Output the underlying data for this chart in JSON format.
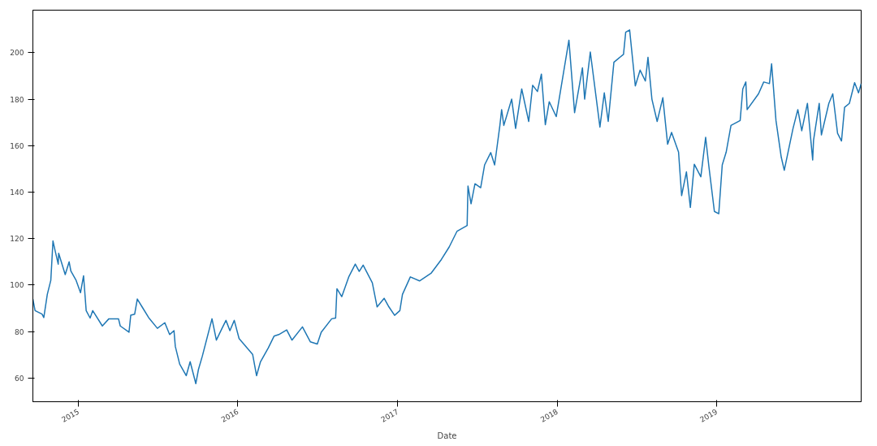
{
  "chart_data": {
    "type": "line",
    "xlabel": "Date",
    "x": [
      "2014-09-19",
      "2014-09-24",
      "2014-10-10",
      "2014-10-14",
      "2014-10-22",
      "2014-10-30",
      "2014-11-04",
      "2014-11-09",
      "2014-11-16",
      "2014-11-17",
      "2014-12-02",
      "2014-12-11",
      "2014-12-15",
      "2014-12-27",
      "2015-01-06",
      "2015-01-13",
      "2015-01-19",
      "2015-01-28",
      "2015-02-03",
      "2015-02-25",
      "2015-03-12",
      "2015-04-03",
      "2015-04-07",
      "2015-04-27",
      "2015-05-01",
      "2015-05-10",
      "2015-05-16",
      "2015-05-29",
      "2015-06-11",
      "2015-07-01",
      "2015-07-18",
      "2015-07-29",
      "2015-08-08",
      "2015-08-11",
      "2015-08-21",
      "2015-09-05",
      "2015-09-14",
      "2015-09-27",
      "2015-10-03",
      "2015-10-12",
      "2015-11-03",
      "2015-11-13",
      "2015-11-26",
      "2015-12-05",
      "2015-12-14",
      "2015-12-24",
      "2016-01-04",
      "2016-02-04",
      "2016-02-13",
      "2016-02-22",
      "2016-03-11",
      "2016-03-24",
      "2016-04-04",
      "2016-04-22",
      "2016-05-04",
      "2016-05-28",
      "2016-06-15",
      "2016-07-01",
      "2016-07-10",
      "2016-08-03",
      "2016-08-12",
      "2016-08-15",
      "2016-08-26",
      "2016-09-11",
      "2016-09-26",
      "2016-10-05",
      "2016-10-14",
      "2016-11-04",
      "2016-11-15",
      "2016-12-01",
      "2016-12-12",
      "2016-12-25",
      "2017-01-06",
      "2017-01-12",
      "2017-01-30",
      "2017-02-20",
      "2017-03-19",
      "2017-04-11",
      "2017-04-29",
      "2017-05-17",
      "2017-06-09",
      "2017-06-11",
      "2017-06-18",
      "2017-06-27",
      "2017-07-10",
      "2017-07-19",
      "2017-08-02",
      "2017-08-11",
      "2017-08-23",
      "2017-08-27",
      "2017-09-01",
      "2017-09-19",
      "2017-09-28",
      "2017-10-12",
      "2017-10-28",
      "2017-11-06",
      "2017-11-17",
      "2017-11-26",
      "2017-12-05",
      "2017-12-14",
      "2017-12-30",
      "2018-01-28",
      "2018-02-10",
      "2018-02-28",
      "2018-03-05",
      "2018-03-18",
      "2018-04-09",
      "2018-04-19",
      "2018-04-28",
      "2018-05-11",
      "2018-06-02",
      "2018-06-07",
      "2018-06-16",
      "2018-06-29",
      "2018-07-10",
      "2018-07-22",
      "2018-07-28",
      "2018-08-06",
      "2018-08-18",
      "2018-08-31",
      "2018-09-11",
      "2018-09-20",
      "2018-10-06",
      "2018-10-13",
      "2018-10-24",
      "2018-11-02",
      "2018-11-11",
      "2018-11-26",
      "2018-12-07",
      "2018-12-14",
      "2018-12-27",
      "2019-01-06",
      "2019-01-14",
      "2019-01-23",
      "2019-02-03",
      "2019-02-24",
      "2019-03-02",
      "2019-03-09",
      "2019-03-12",
      "2019-04-07",
      "2019-04-19",
      "2019-05-02",
      "2019-05-07",
      "2019-05-17",
      "2019-05-29",
      "2019-06-05",
      "2019-06-25",
      "2019-07-06",
      "2019-07-15",
      "2019-07-28",
      "2019-08-09",
      "2019-08-11",
      "2019-08-24",
      "2019-08-29",
      "2019-09-15",
      "2019-09-24",
      "2019-10-05",
      "2019-10-14",
      "2019-10-21",
      "2019-11-01",
      "2019-11-13",
      "2019-11-22",
      "2019-11-28"
    ],
    "series": [
      {
        "color": "#1f77b4",
        "values": [
          94,
          89,
          87.5,
          86,
          96,
          102,
          119,
          114.7,
          109,
          113.7,
          104.5,
          110,
          106,
          102,
          96.7,
          104,
          89,
          85.8,
          89,
          82.4,
          85.5,
          85.5,
          82.4,
          79.7,
          87,
          87.5,
          94,
          90,
          86,
          81.4,
          83.8,
          78.7,
          80.4,
          73.6,
          66,
          61,
          67,
          57.6,
          63.7,
          69.5,
          85.5,
          76.3,
          81.4,
          84.8,
          80.4,
          84.8,
          77,
          70.2,
          61,
          67,
          73,
          78,
          78.7,
          80.7,
          76.3,
          82,
          75.6,
          74.6,
          79.7,
          85.5,
          85.8,
          98.4,
          95,
          103.5,
          109,
          105.9,
          108.6,
          101,
          90.6,
          94.3,
          90.6,
          87,
          89,
          96,
          103.5,
          101.8,
          105.2,
          111,
          116.4,
          123.2,
          125.6,
          142.6,
          135,
          143.6,
          141.9,
          151.7,
          157,
          151.7,
          168.7,
          175.5,
          168.7,
          180,
          167.4,
          184.4,
          170.4,
          186,
          183.3,
          190.8,
          169,
          178.9,
          172.5,
          205.4,
          174.2,
          193.5,
          180,
          200.3,
          168,
          182.7,
          170.4,
          195.9,
          199.3,
          208.8,
          209.8,
          185.7,
          192.5,
          187.8,
          198,
          180,
          170.4,
          180.6,
          160.6,
          165.7,
          157.2,
          138.5,
          148.7,
          133.4,
          152,
          146.6,
          163.6,
          151.7,
          131.7,
          130.7,
          151.7,
          157.2,
          168.7,
          170.8,
          184.4,
          187.4,
          175.5,
          182.3,
          187.4,
          186.7,
          195.2,
          170.8,
          155.1,
          149.4,
          167.4,
          175.5,
          166.4,
          178.2,
          153.8,
          162.3,
          178.2,
          164.6,
          178.2,
          182.3,
          165.3,
          162,
          176.5,
          178.2,
          187.1,
          182.7,
          186.7
        ]
      }
    ],
    "xlim": [
      "2014-09-19",
      "2019-11-28"
    ],
    "xticks": [
      "2015",
      "2016",
      "2017",
      "2018",
      "2019"
    ],
    "ylim": [
      49.8,
      218.3
    ],
    "yticks": [
      60,
      80,
      100,
      120,
      140,
      160,
      180,
      200
    ]
  }
}
